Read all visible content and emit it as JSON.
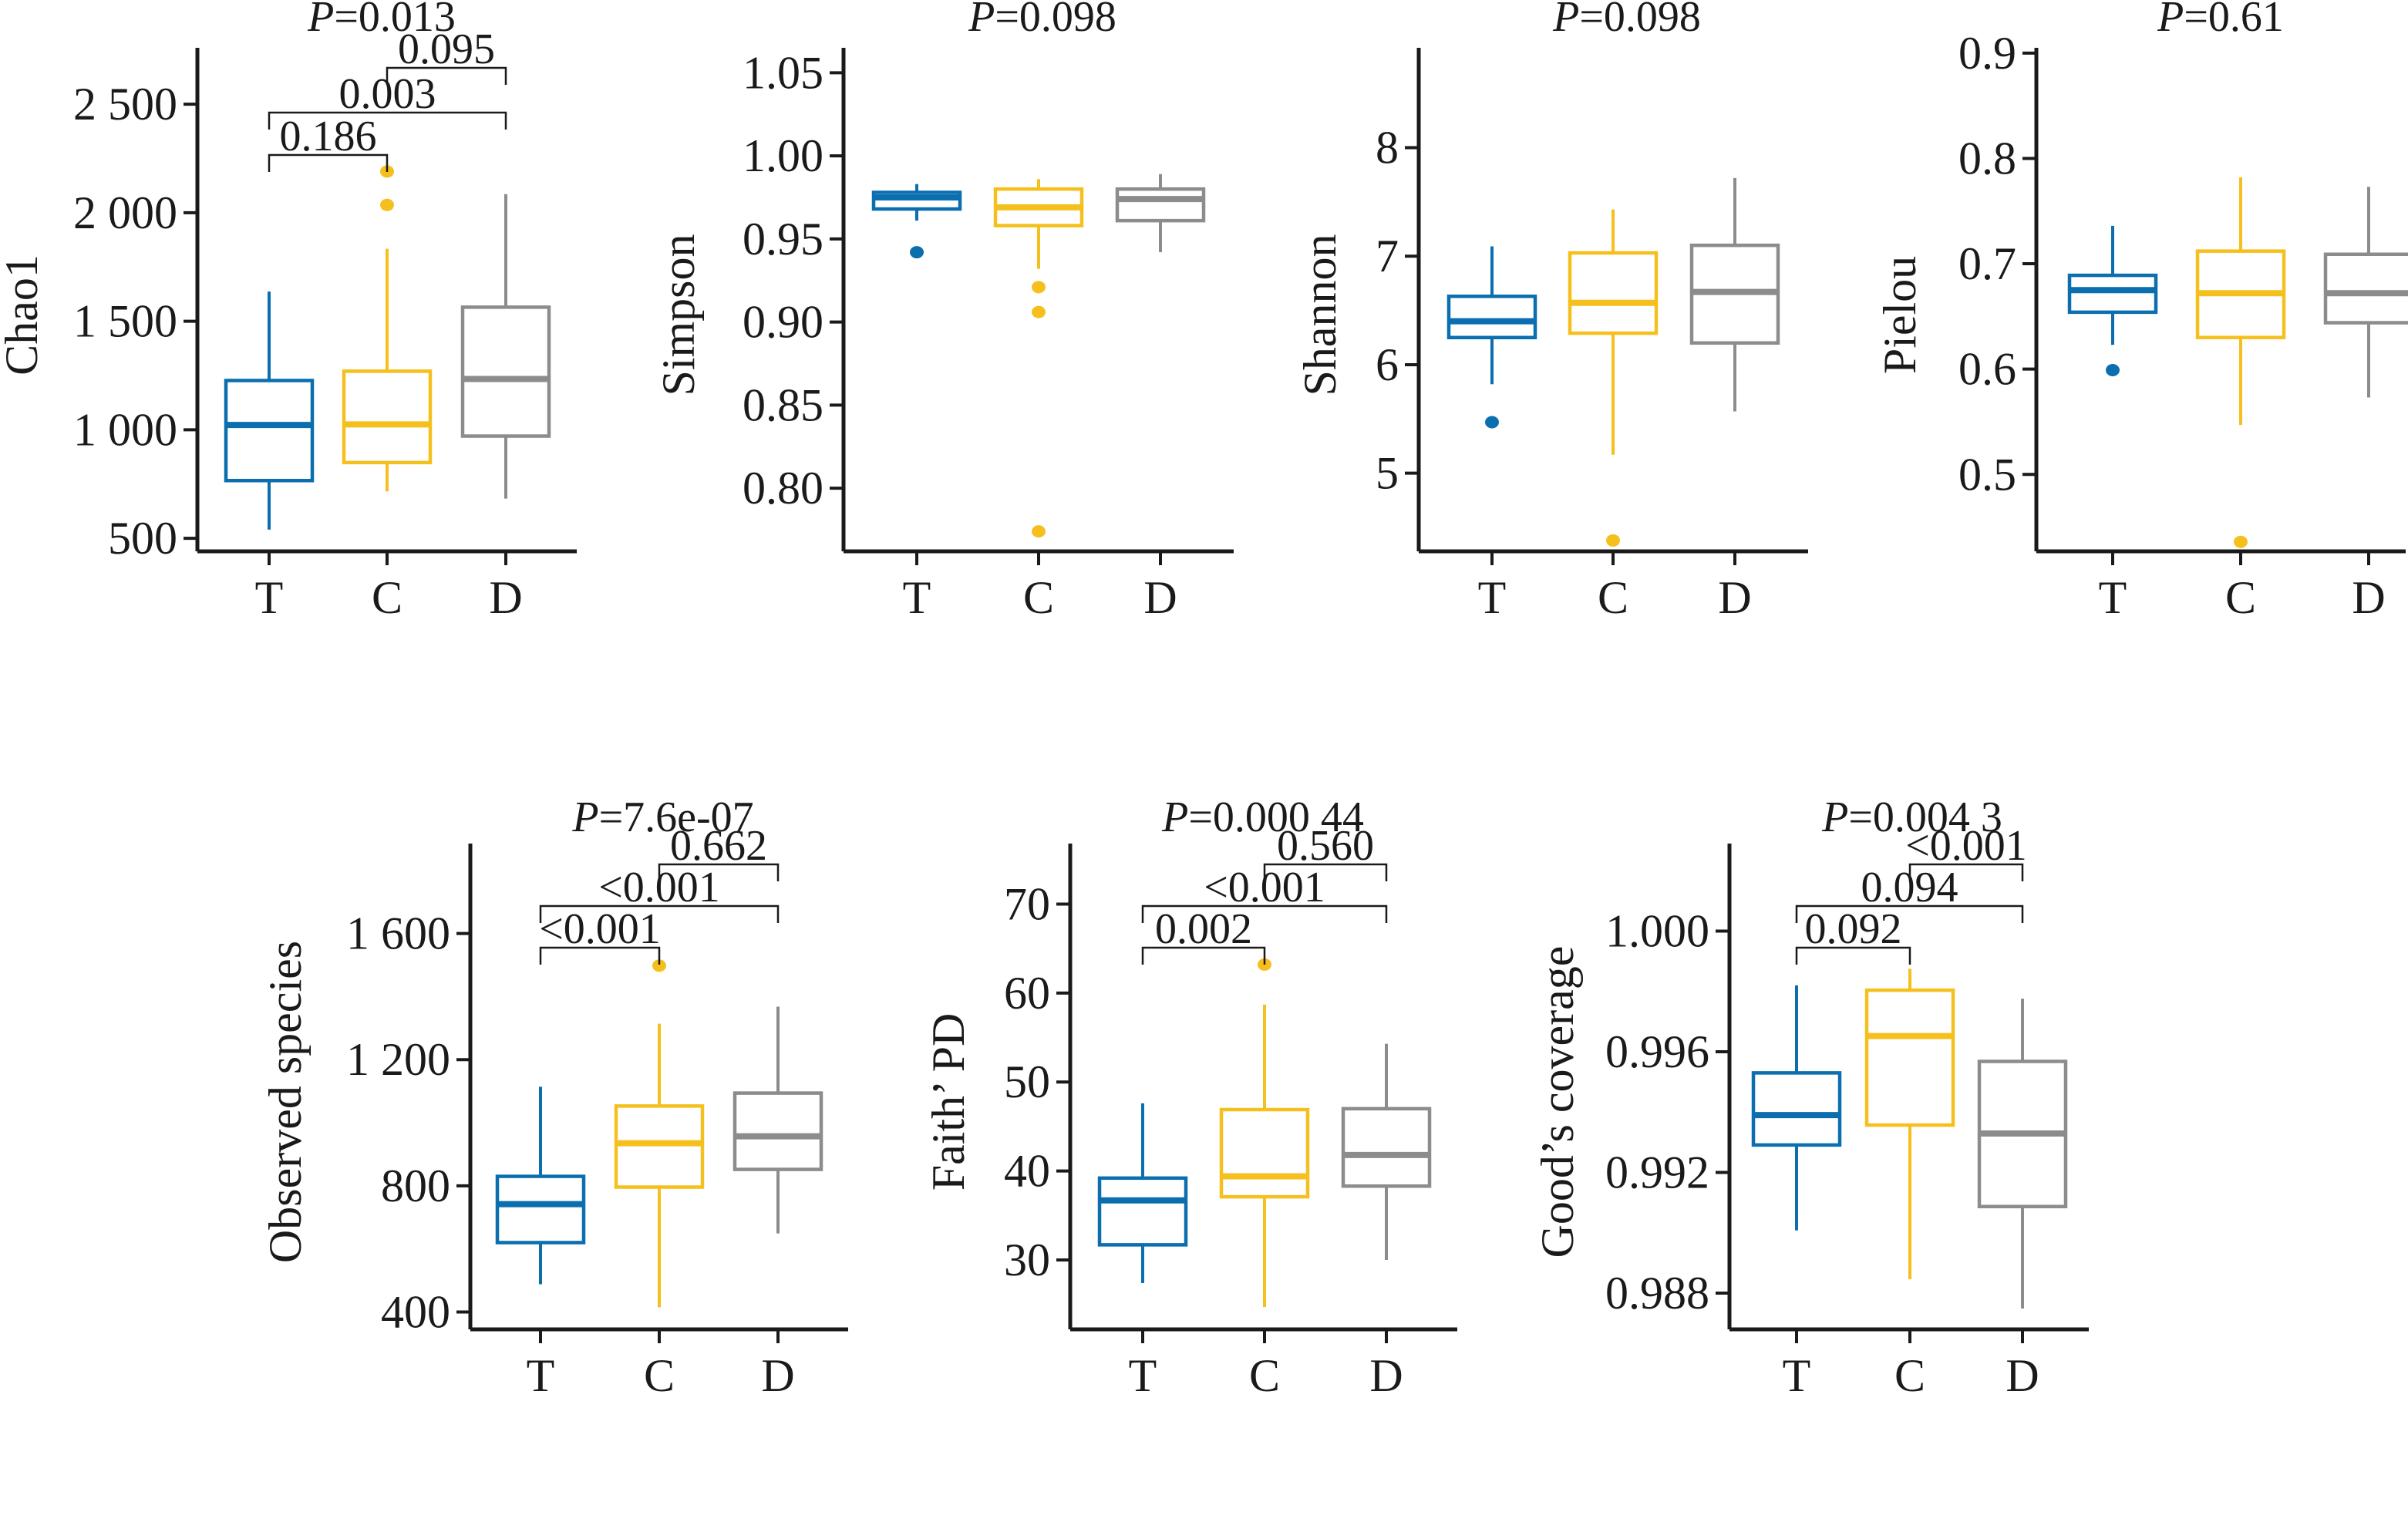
{
  "chart_data": [
    {
      "type": "boxplot",
      "ylabel": "Chao1",
      "title": "P=0.013",
      "title_p": "P",
      "title_value": "=0.013",
      "categories": [
        "T",
        "C",
        "D"
      ],
      "ylim": [
        440,
        2760
      ],
      "yticks": [
        500,
        1000,
        1500,
        2000,
        2500
      ],
      "ytick_labels": [
        "500",
        "1 000",
        "1 500",
        "2 000",
        "2 500"
      ],
      "boxes": [
        {
          "group": "T",
          "whisker_low": 540,
          "q1": 766,
          "median": 1022,
          "q3": 1227,
          "whisker_high": 1637,
          "outliers": []
        },
        {
          "group": "C",
          "whisker_low": 716,
          "q1": 849,
          "median": 1025,
          "q3": 1270,
          "whisker_high": 1834,
          "outliers": [
            2036,
            2190
          ]
        },
        {
          "group": "D",
          "whisker_low": 683,
          "q1": 971,
          "median": 1234,
          "q3": 1565,
          "whisker_high": 2086,
          "outliers": []
        }
      ],
      "comparisons": [
        {
          "pair": [
            "T",
            "C"
          ],
          "label": "0.186",
          "level": 0
        },
        {
          "pair": [
            "T",
            "D"
          ],
          "label": "0.003",
          "level": 1
        },
        {
          "pair": [
            "C",
            "D"
          ],
          "label": "0.095",
          "level": 2
        }
      ]
    },
    {
      "type": "boxplot",
      "ylabel": "Simpson",
      "title": "P=0.098",
      "title_p": "P",
      "title_value": "=0.098",
      "categories": [
        "T",
        "C",
        "D"
      ],
      "ylim": [
        0.762,
        1.065
      ],
      "yticks": [
        0.8,
        0.85,
        0.9,
        0.95,
        1.0,
        1.05
      ],
      "ytick_labels": [
        "0.80",
        "0.85",
        "0.90",
        "0.95",
        "1.00",
        "1.05"
      ],
      "boxes": [
        {
          "group": "T",
          "whisker_low": 0.961,
          "q1": 0.968,
          "median": 0.975,
          "q3": 0.978,
          "whisker_high": 0.983,
          "outliers": [
            0.942
          ]
        },
        {
          "group": "C",
          "whisker_low": 0.932,
          "q1": 0.958,
          "median": 0.969,
          "q3": 0.98,
          "whisker_high": 0.986,
          "outliers": [
            0.921,
            0.906,
            0.774
          ]
        },
        {
          "group": "D",
          "whisker_low": 0.942,
          "q1": 0.961,
          "median": 0.974,
          "q3": 0.98,
          "whisker_high": 0.989,
          "outliers": []
        }
      ],
      "comparisons": []
    },
    {
      "type": "boxplot",
      "ylabel": "Shannon",
      "title": "P=0.098",
      "title_p": "P",
      "title_value": "=0.098",
      "categories": [
        "T",
        "C",
        "D"
      ],
      "ylim": [
        4.28,
        8.92
      ],
      "yticks": [
        5,
        6,
        7,
        8
      ],
      "ytick_labels": [
        "5",
        "6",
        "7",
        "8"
      ],
      "boxes": [
        {
          "group": "T",
          "whisker_low": 5.82,
          "q1": 6.25,
          "median": 6.4,
          "q3": 6.63,
          "whisker_high": 7.09,
          "outliers": [
            5.47
          ]
        },
        {
          "group": "C",
          "whisker_low": 5.17,
          "q1": 6.29,
          "median": 6.57,
          "q3": 7.03,
          "whisker_high": 7.43,
          "outliers": [
            4.38
          ]
        },
        {
          "group": "D",
          "whisker_low": 5.57,
          "q1": 6.2,
          "median": 6.67,
          "q3": 7.1,
          "whisker_high": 7.72,
          "outliers": []
        }
      ],
      "comparisons": []
    },
    {
      "type": "boxplot",
      "ylabel": "Pielou",
      "title": "P=0.61",
      "title_p": "P",
      "title_value": "=0.61",
      "categories": [
        "T",
        "C",
        "D"
      ],
      "ylim": [
        0.427,
        0.905
      ],
      "yticks": [
        0.5,
        0.6,
        0.7,
        0.8,
        0.9
      ],
      "ytick_labels": [
        "0.5",
        "0.6",
        "0.7",
        "0.8",
        "0.9"
      ],
      "boxes": [
        {
          "group": "T",
          "whisker_low": 0.623,
          "q1": 0.654,
          "median": 0.675,
          "q3": 0.689,
          "whisker_high": 0.736,
          "outliers": [
            0.599
          ]
        },
        {
          "group": "C",
          "whisker_low": 0.547,
          "q1": 0.63,
          "median": 0.672,
          "q3": 0.712,
          "whisker_high": 0.782,
          "outliers": [
            0.436
          ]
        },
        {
          "group": "D",
          "whisker_low": 0.573,
          "q1": 0.644,
          "median": 0.672,
          "q3": 0.709,
          "whisker_high": 0.773,
          "outliers": []
        }
      ],
      "comparisons": []
    },
    {
      "type": "boxplot",
      "ylabel": "Observed species",
      "title": "P=7.6e-07",
      "title_p": "P",
      "title_value": "=7.6e-07",
      "categories": [
        "T",
        "C",
        "D"
      ],
      "ylim": [
        345,
        1885
      ],
      "yticks": [
        400,
        800,
        1200,
        1600
      ],
      "ytick_labels": [
        "400",
        "800",
        "1 200",
        "1 600"
      ],
      "boxes": [
        {
          "group": "T",
          "whisker_low": 488,
          "q1": 620,
          "median": 742,
          "q3": 830,
          "whisker_high": 1114,
          "outliers": []
        },
        {
          "group": "C",
          "whisker_low": 415,
          "q1": 796,
          "median": 935,
          "q3": 1053,
          "whisker_high": 1314,
          "outliers": [
            1498
          ]
        },
        {
          "group": "D",
          "whisker_low": 649,
          "q1": 852,
          "median": 957,
          "q3": 1094,
          "whisker_high": 1368,
          "outliers": []
        }
      ],
      "comparisons": [
        {
          "pair": [
            "T",
            "C"
          ],
          "label": "<0.001",
          "level": 0
        },
        {
          "pair": [
            "T",
            "D"
          ],
          "label": "<0.001",
          "level": 1
        },
        {
          "pair": [
            "C",
            "D"
          ],
          "label": "0.662",
          "level": 2
        }
      ]
    },
    {
      "type": "boxplot",
      "ylabel": "Faith’ PD",
      "title": "P=0.000 44",
      "title_p": "P",
      "title_value": "=0.000 44",
      "categories": [
        "T",
        "C",
        "D"
      ],
      "ylim": [
        22.2,
        76.8
      ],
      "yticks": [
        30,
        40,
        50,
        60,
        70
      ],
      "ytick_labels": [
        "30",
        "40",
        "50",
        "60",
        "70"
      ],
      "boxes": [
        {
          "group": "T",
          "whisker_low": 27.4,
          "q1": 31.7,
          "median": 36.7,
          "q3": 39.2,
          "whisker_high": 47.6,
          "outliers": []
        },
        {
          "group": "C",
          "whisker_low": 24.7,
          "q1": 37.1,
          "median": 39.4,
          "q3": 46.9,
          "whisker_high": 58.7,
          "outliers": [
            63.2
          ]
        },
        {
          "group": "D",
          "whisker_low": 30.0,
          "q1": 38.3,
          "median": 41.8,
          "q3": 47.0,
          "whisker_high": 54.3,
          "outliers": []
        }
      ],
      "comparisons": [
        {
          "pair": [
            "T",
            "C"
          ],
          "label": "0.002",
          "level": 0
        },
        {
          "pair": [
            "T",
            "D"
          ],
          "label": "<0.001",
          "level": 1
        },
        {
          "pair": [
            "C",
            "D"
          ],
          "label": "0.560",
          "level": 2
        }
      ]
    },
    {
      "type": "boxplot",
      "ylabel": "Good’s coverage",
      "title": "P=0.004 3",
      "title_p": "P",
      "title_value": "=0.004 3",
      "categories": [
        "T",
        "C",
        "D"
      ],
      "ylim": [
        0.9868,
        1.0029
      ],
      "yticks": [
        0.988,
        0.992,
        0.996,
        1.0
      ],
      "ytick_labels": [
        "0.988",
        "0.992",
        "0.996",
        "1.000"
      ],
      "boxes": [
        {
          "group": "T",
          "whisker_low": 0.99008,
          "q1": 0.99291,
          "median": 0.9939,
          "q3": 0.9953,
          "whisker_high": 0.9982,
          "outliers": []
        },
        {
          "group": "C",
          "whisker_low": 0.98846,
          "q1": 0.99357,
          "median": 0.99652,
          "q3": 0.99804,
          "whisker_high": 0.99875,
          "outliers": []
        },
        {
          "group": "D",
          "whisker_low": 0.98749,
          "q1": 0.99087,
          "median": 0.99329,
          "q3": 0.99568,
          "whisker_high": 0.99776,
          "outliers": []
        }
      ],
      "comparisons": [
        {
          "pair": [
            "T",
            "C"
          ],
          "label": "0.092",
          "level": 0
        },
        {
          "pair": [
            "T",
            "D"
          ],
          "label": "0.094",
          "level": 1
        },
        {
          "pair": [
            "C",
            "D"
          ],
          "label": "<0.001",
          "level": 2
        }
      ]
    }
  ],
  "group_colors": {
    "T": "#0a6eaf",
    "C": "#f5c01e",
    "D": "#8c8c8c"
  },
  "axis_color": "#1a1a1a",
  "grid": false,
  "legend": "none"
}
